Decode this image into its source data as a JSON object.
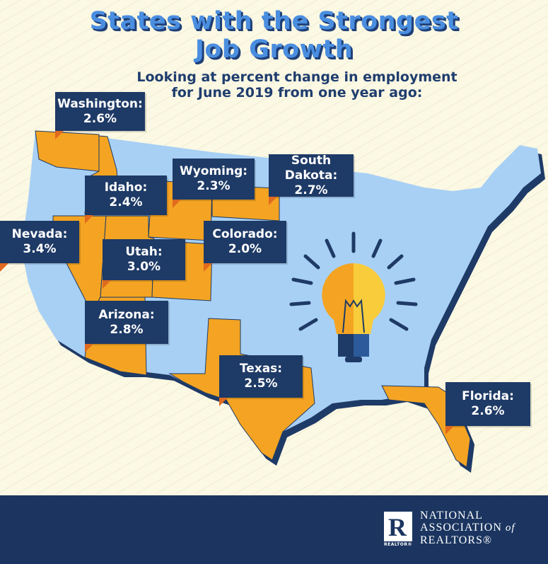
{
  "title_line1": "States with the Strongest",
  "title_line2": "Job Growth",
  "subtitle_line1": "Looking at percent change in employment",
  "subtitle_line2": "for June 2019 from one year ago:",
  "colors": {
    "map_land": "#a8d0f5",
    "highlight_state": "#f4a422",
    "label_bg": "#1e3a66",
    "pointer": "#e06a1e",
    "footer": "#1b3560"
  },
  "states": [
    {
      "name": "Washington:",
      "value": "2.6%"
    },
    {
      "name": "Wyoming:",
      "value": "2.3%"
    },
    {
      "name": "South Dakota:",
      "value": "2.7%"
    },
    {
      "name": "Idaho:",
      "value": "2.4%"
    },
    {
      "name": "Nevada:",
      "value": "3.4%"
    },
    {
      "name": "Colorado:",
      "value": "2.0%"
    },
    {
      "name": "Utah:",
      "value": "3.0%"
    },
    {
      "name": "Arizona:",
      "value": "2.8%"
    },
    {
      "name": "Texas:",
      "value": "2.5%"
    },
    {
      "name": "Florida:",
      "value": "2.6%"
    }
  ],
  "icon": "light-bulb-icon",
  "footer": {
    "logo_letter": "R",
    "logo_caption": "REALTOR®",
    "org_line1": "NATIONAL",
    "org_line2": "ASSOCIATION",
    "org_of": "of",
    "org_line3": "REALTORS®"
  }
}
